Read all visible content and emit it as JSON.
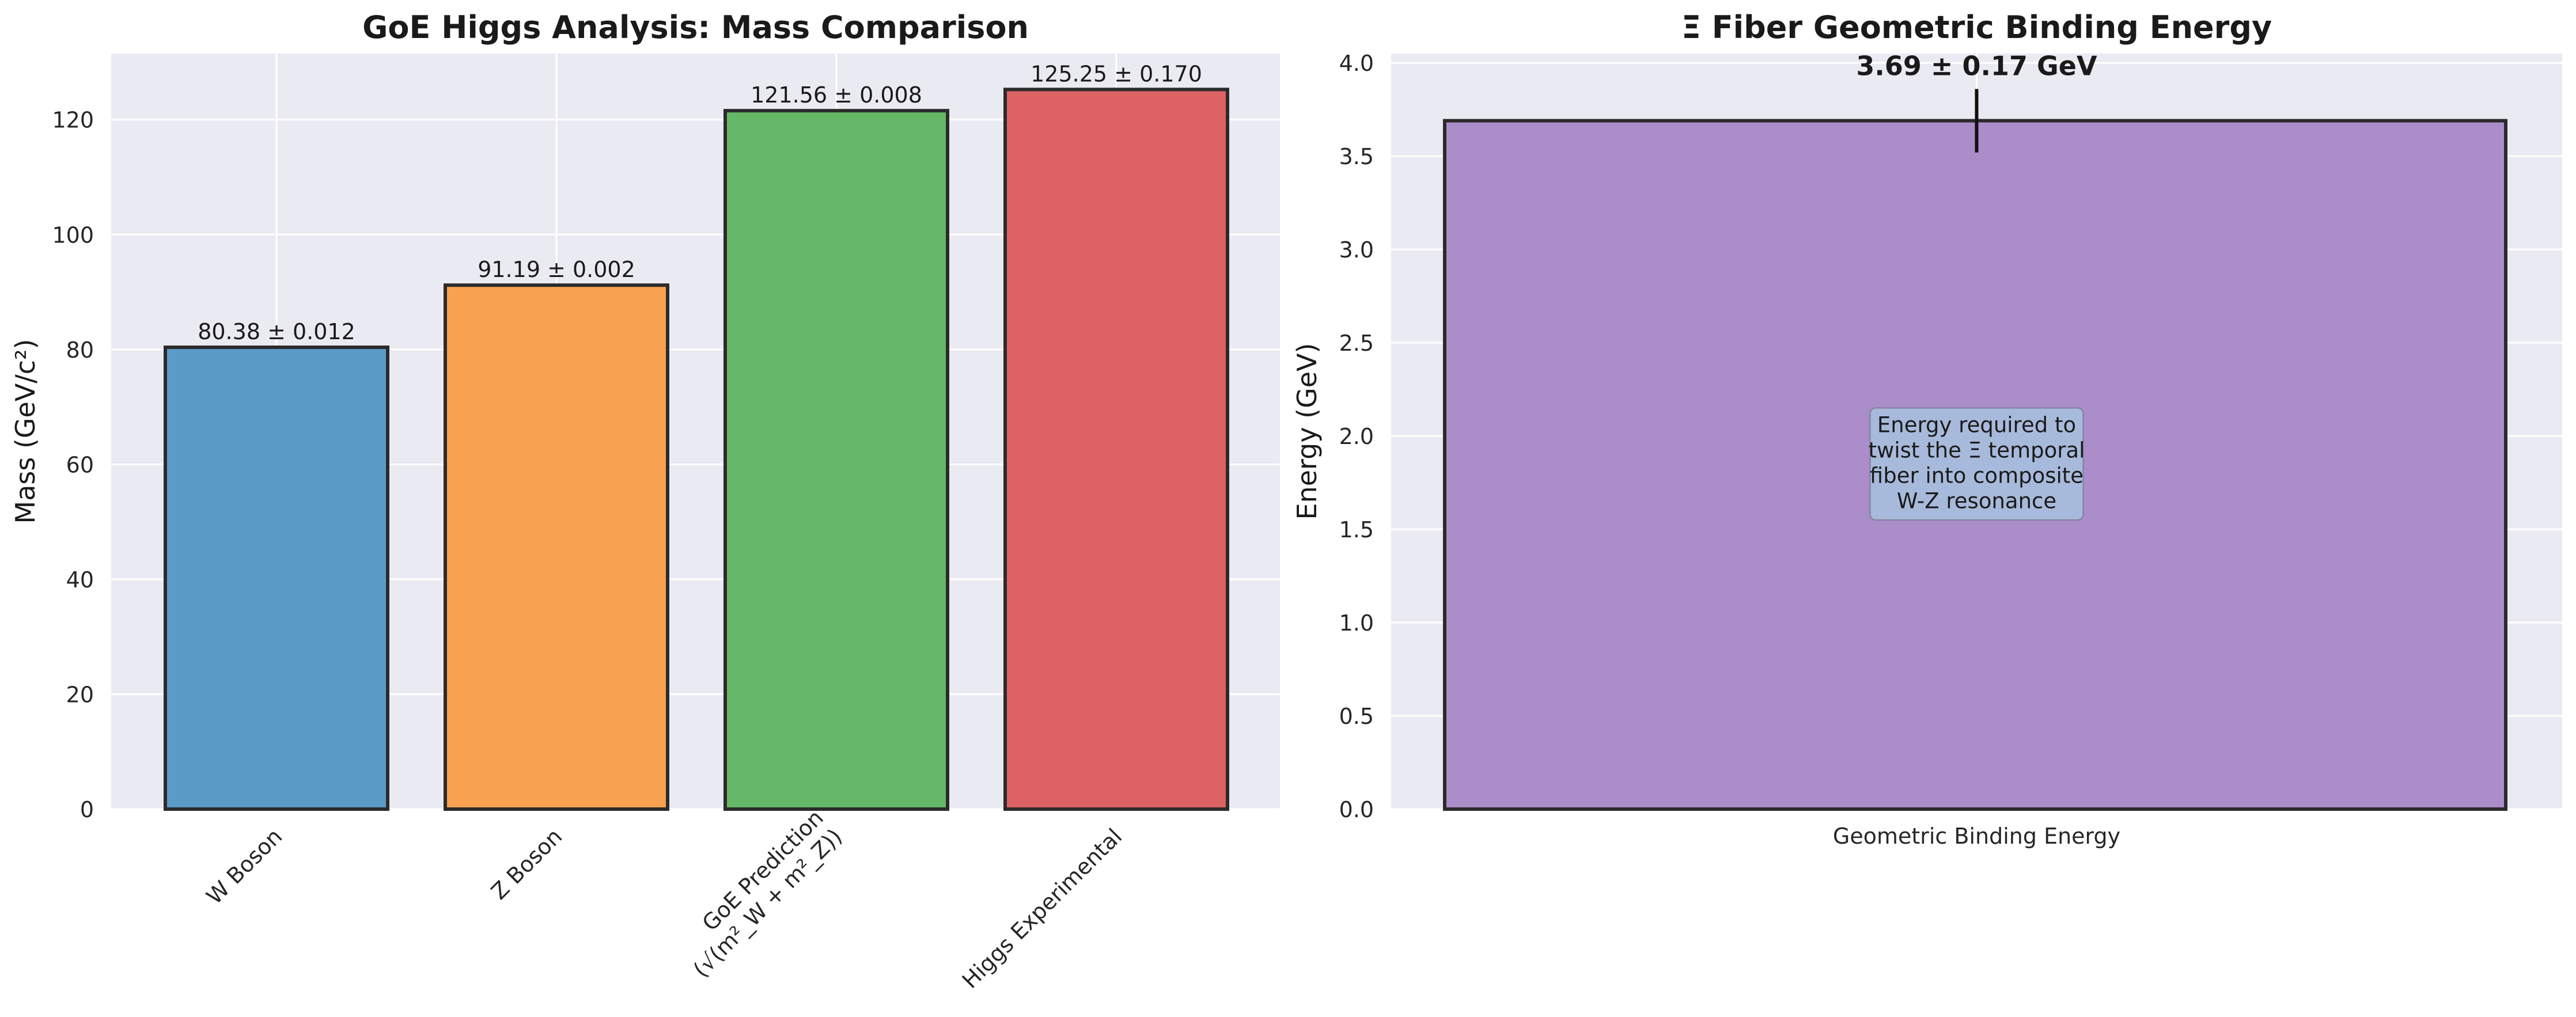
{
  "chart_data": [
    {
      "type": "bar",
      "title": "GoE Higgs Analysis: Mass Comparison",
      "xlabel": "",
      "ylabel": "Mass (GeV/c²)",
      "ylim": [
        0,
        131.5
      ],
      "yticks": [
        0,
        20,
        40,
        60,
        80,
        100,
        120
      ],
      "grid": true,
      "categories": [
        [
          "W Boson"
        ],
        [
          "Z Boson"
        ],
        [
          "GoE Prediction",
          "(√(m²_W + m²_Z))"
        ],
        [
          "Higgs Experimental"
        ]
      ],
      "values": [
        80.38,
        91.19,
        121.56,
        125.25
      ],
      "value_labels": [
        "80.38 ± 0.012",
        "91.19 ± 0.002",
        "121.56 ± 0.008",
        "125.25 ± 0.170"
      ],
      "colors": [
        "#5b9bc8",
        "#f8a150",
        "#65b867",
        "#dd6264"
      ]
    },
    {
      "type": "bar",
      "title": "Ξ Fiber Geometric Binding Energy",
      "xlabel": "",
      "ylabel": "Energy (GeV)",
      "ylim": [
        0,
        4.05
      ],
      "yticks": [
        0.0,
        0.5,
        1.0,
        1.5,
        2.0,
        2.5,
        3.0,
        3.5,
        4.0
      ],
      "grid": true,
      "categories": [
        "Geometric Binding Energy"
      ],
      "values": [
        3.69
      ],
      "error": [
        0.17
      ],
      "value_labels": [
        "3.69 ± 0.17 GeV"
      ],
      "colors": [
        "#ab8dca"
      ],
      "annotation": [
        "Energy required to",
        "twist the Ξ temporal",
        "fiber into composite",
        "W-Z resonance"
      ]
    }
  ]
}
